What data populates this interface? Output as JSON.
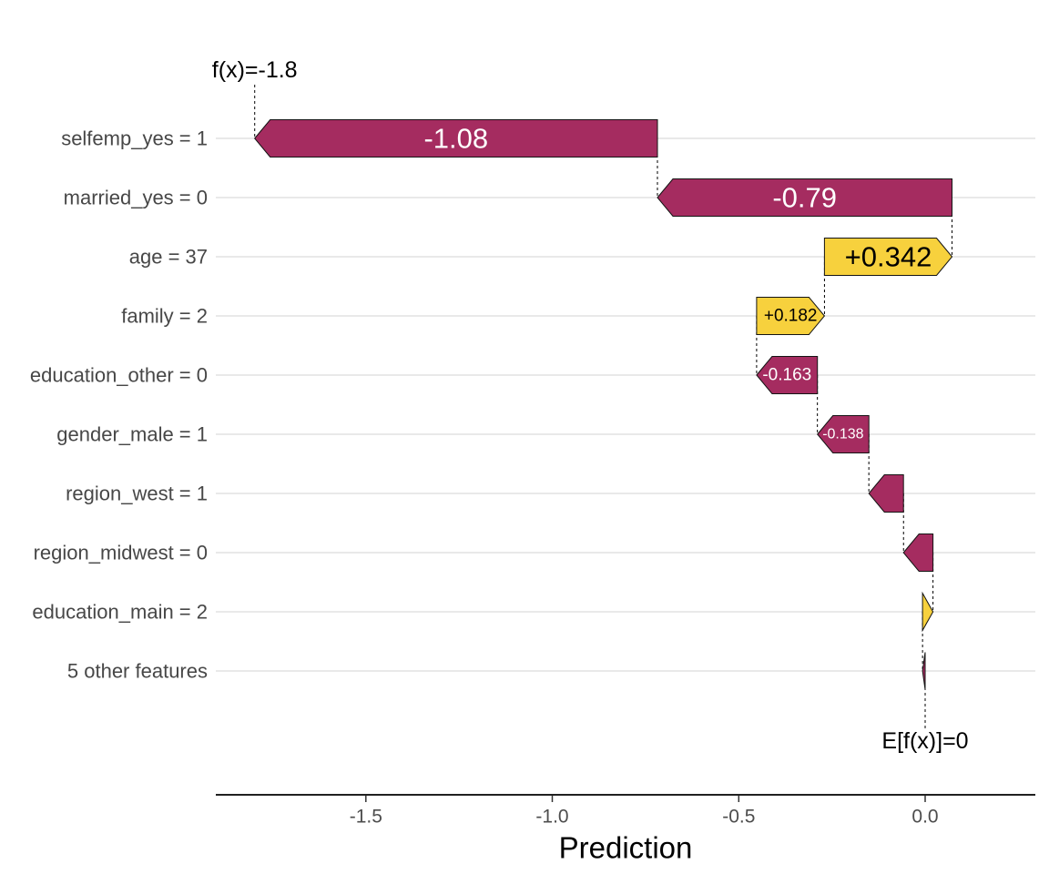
{
  "chart_data": {
    "type": "bar",
    "subtype": "shap-waterfall",
    "title": "",
    "xlabel": "Prediction",
    "grid": true,
    "legend": false,
    "xlim": [
      -1.9,
      0.3
    ],
    "x_ticks": [
      {
        "value": -1.5,
        "label": "-1.5"
      },
      {
        "value": -1.0,
        "label": "-1.0"
      },
      {
        "value": -0.5,
        "label": "-0.5"
      },
      {
        "value": 0.0,
        "label": "0.0"
      }
    ],
    "fx_label": "f(x)=-1.8",
    "fx_value": -1.798,
    "efx_label": "E[f(x)]=0",
    "efx_value": 0,
    "colors": {
      "positive": "#f7d13d",
      "negative": "#a52c60",
      "bar_outline": "#141414",
      "gridline": "#e9e9e9",
      "axis_text": "#4d4d4d",
      "label_text": "#474747",
      "annotation_text": "#000000",
      "axis_line": "#000000"
    },
    "rows": [
      {
        "feature": "selfemp_yes = 1",
        "shap": -1.08,
        "value_label": "-1.08",
        "sign": "negative",
        "x0": -1.798,
        "x1": -0.718,
        "label_size": 31,
        "label_color": "#ffffff"
      },
      {
        "feature": "married_yes = 0",
        "shap": -0.79,
        "value_label": "-0.79",
        "sign": "negative",
        "x0": -0.718,
        "x1": 0.072,
        "label_size": 31,
        "label_color": "#ffffff"
      },
      {
        "feature": "age = 37",
        "shap": 0.342,
        "value_label": "+0.342",
        "sign": "positive",
        "x0": -0.27,
        "x1": 0.072,
        "label_size": 31,
        "label_color": "#000000"
      },
      {
        "feature": "family = 2",
        "shap": 0.182,
        "value_label": "+0.182",
        "sign": "positive",
        "x0": -0.452,
        "x1": -0.27,
        "label_size": 19,
        "label_color": "#000000"
      },
      {
        "feature": "education_other = 0",
        "shap": -0.163,
        "value_label": "-0.163",
        "sign": "negative",
        "x0": -0.452,
        "x1": -0.289,
        "label_size": 19,
        "label_color": "#ffffff"
      },
      {
        "feature": "gender_male = 1",
        "shap": -0.138,
        "value_label": "-0.138",
        "sign": "negative",
        "x0": -0.289,
        "x1": -0.151,
        "label_size": 16,
        "label_color": "#ffffff"
      },
      {
        "feature": "region_west = 1",
        "shap": -0.093,
        "value_label": "",
        "sign": "negative",
        "x0": -0.151,
        "x1": -0.058,
        "label_size": 0,
        "label_color": "#ffffff"
      },
      {
        "feature": "region_midwest = 0",
        "shap": -0.079,
        "value_label": "",
        "sign": "negative",
        "x0": -0.058,
        "x1": 0.021,
        "label_size": 0,
        "label_color": "#ffffff"
      },
      {
        "feature": "education_main = 2",
        "shap": 0.028,
        "value_label": "",
        "sign": "positive",
        "x0": -0.007,
        "x1": 0.021,
        "label_size": 0,
        "label_color": "#000000"
      },
      {
        "feature": "5 other features",
        "shap": -0.007,
        "value_label": "",
        "sign": "negative",
        "x0": -0.007,
        "x1": 0.0,
        "label_size": 0,
        "label_color": "#ffffff"
      }
    ]
  }
}
